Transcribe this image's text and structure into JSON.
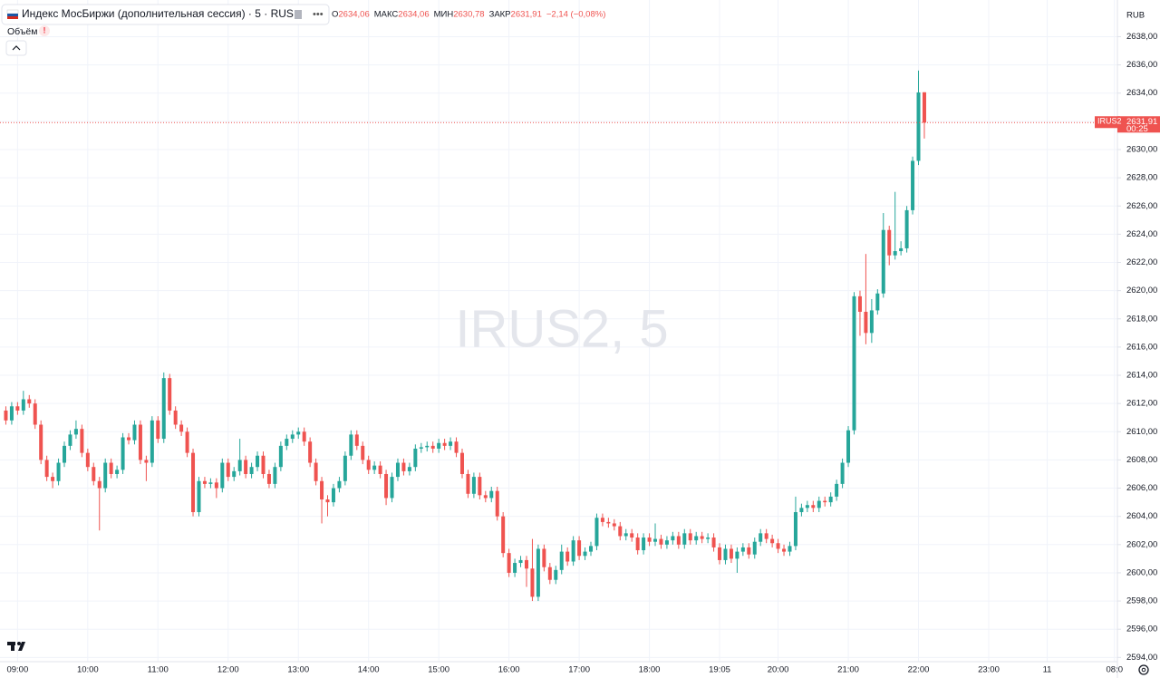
{
  "chart_data": {
    "type": "candlestick",
    "title": "Индекс МосБиржи (дополнительная сессия) · 5 · RUS",
    "legend_values": [
      {
        "label": "О",
        "value": "2634,06"
      },
      {
        "label": "МАКС",
        "value": "2634,06"
      },
      {
        "label": "МИН",
        "value": "2630,78"
      },
      {
        "label": "ЗАКР",
        "value": "2631,91"
      }
    ],
    "change": "−2,14 (−0,08%)",
    "indicator": "Объём",
    "currency": "RUB",
    "watermark": "IRUS2, 5",
    "up_color": "#26a69a",
    "down_color": "#ef5350",
    "grid": true,
    "last_price": {
      "value": 2631.91,
      "label": "2631,91",
      "symbol": "IRUS2",
      "countdown": "00:25"
    },
    "xlim": [
      -1,
      190
    ],
    "xticks": [
      {
        "value": 2,
        "label": "09:00"
      },
      {
        "value": 14,
        "label": "10:00"
      },
      {
        "value": 26,
        "label": "11:00"
      },
      {
        "value": 38,
        "label": "12:00"
      },
      {
        "value": 50,
        "label": "13:00"
      },
      {
        "value": 62,
        "label": "14:00"
      },
      {
        "value": 74,
        "label": "15:00"
      },
      {
        "value": 86,
        "label": "16:00"
      },
      {
        "value": 98,
        "label": "17:00"
      },
      {
        "value": 110,
        "label": "18:00"
      },
      {
        "value": 122,
        "label": "19:05"
      },
      {
        "value": 132,
        "label": "20:00"
      },
      {
        "value": 144,
        "label": "21:00"
      },
      {
        "value": 156,
        "label": "22:00"
      },
      {
        "value": 168,
        "label": "23:00"
      },
      {
        "value": 178,
        "label": "11"
      },
      {
        "value": 189.5,
        "label": "08:0"
      }
    ],
    "ylim": [
      2593.7,
      2640.6
    ],
    "yticks": [
      {
        "value": 2594,
        "label": "2594,00"
      },
      {
        "value": 2596,
        "label": "2596,00"
      },
      {
        "value": 2598,
        "label": "2598,00"
      },
      {
        "value": 2600,
        "label": "2600,00"
      },
      {
        "value": 2602,
        "label": "2602,00"
      },
      {
        "value": 2604,
        "label": "2604,00"
      },
      {
        "value": 2606,
        "label": "2606,00"
      },
      {
        "value": 2608,
        "label": "2608,00"
      },
      {
        "value": 2610,
        "label": "2610,00"
      },
      {
        "value": 2612,
        "label": "2612,00"
      },
      {
        "value": 2614,
        "label": "2614,00"
      },
      {
        "value": 2616,
        "label": "2616,00"
      },
      {
        "value": 2618,
        "label": "2618,00"
      },
      {
        "value": 2620,
        "label": "2620,00"
      },
      {
        "value": 2622,
        "label": "2622,00"
      },
      {
        "value": 2624,
        "label": "2624,00"
      },
      {
        "value": 2626,
        "label": "2626,00"
      },
      {
        "value": 2628,
        "label": "2628,00"
      },
      {
        "value": 2630,
        "label": "2630,00"
      },
      {
        "value": 2632,
        "label": "2632,00"
      },
      {
        "value": 2634,
        "label": "2634,00"
      },
      {
        "value": 2636,
        "label": "2636,00"
      },
      {
        "value": 2638,
        "label": "2638,00"
      }
    ],
    "open": [
      2611.5,
      2610.8,
      2611.8,
      2611.5,
      2612.3,
      2612.0,
      2610.5,
      2608.0,
      2606.8,
      2606.5,
      2607.8,
      2609.0,
      2609.8,
      2610.2,
      2608.5,
      2607.5,
      2606.5,
      2606.0,
      2607.8,
      2607.0,
      2607.3,
      2609.6,
      2609.4,
      2610.5,
      2608.0,
      2607.8,
      2610.8,
      2609.5,
      2613.8,
      2611.5,
      2610.5,
      2610.0,
      2608.5,
      2604.3,
      2606.5,
      2606.3,
      2606.4,
      2606.0,
      2607.8,
      2606.8,
      2607.2,
      2608.0,
      2607.0,
      2607.5,
      2608.3,
      2607.0,
      2606.3,
      2607.5,
      2609.0,
      2609.5,
      2609.8,
      2610.0,
      2609.3,
      2607.8,
      2606.5,
      2605.2,
      2605.0,
      2606.0,
      2606.5,
      2608.3,
      2609.8,
      2609.0,
      2608.0,
      2607.3,
      2607.6,
      2607.0,
      2605.3,
      2606.8,
      2607.8,
      2607.2,
      2607.5,
      2608.8,
      2608.9,
      2609.0,
      2608.8,
      2609.2,
      2609.0,
      2609.3,
      2608.5,
      2607.0,
      2605.6,
      2606.8,
      2605.5,
      2605.3,
      2605.8,
      2604.0,
      2601.4,
      2600.0,
      2600.7,
      2600.9,
      2600.3,
      2598.3,
      2601.7,
      2600.4,
      2599.5,
      2600.2,
      2601.5,
      2600.8,
      2602.3,
      2601.2,
      2601.5,
      2601.9,
      2603.9,
      2603.6,
      2603.5,
      2603.3,
      2602.6,
      2602.8,
      2602.5,
      2601.6,
      2602.5,
      2602.2,
      2602.4,
      2602.0,
      2602.3,
      2602.6,
      2602.0,
      2602.8,
      2602.3,
      2602.6,
      2602.4,
      2602.5,
      2601.8,
      2600.9,
      2601.7,
      2601.0,
      2601.5,
      2601.8,
      2601.3,
      2602.2,
      2602.8,
      2602.4,
      2602.1,
      2601.7,
      2601.5,
      2601.9,
      2604.3,
      2604.6,
      2604.8,
      2604.6,
      2605.1,
      2605.0,
      2605.4,
      2606.3,
      2607.8,
      2610.1,
      2619.6,
      2618.5,
      2617.0,
      2618.6,
      2619.8,
      2624.3,
      2622.5,
      2622.8,
      2623.0,
      2625.7,
      2629.2,
      2634.06
    ],
    "high": [
      2611.8,
      2612.1,
      2612.1,
      2612.9,
      2612.6,
      2612.3,
      2610.8,
      2608.3,
      2607.1,
      2608.1,
      2609.3,
      2610.1,
      2610.8,
      2610.5,
      2608.8,
      2607.8,
      2606.8,
      2608.1,
      2608.1,
      2607.6,
      2609.9,
      2609.9,
      2610.8,
      2610.8,
      2608.3,
      2611.1,
      2611.1,
      2614.2,
      2614.1,
      2611.8,
      2610.8,
      2610.3,
      2608.8,
      2606.8,
      2606.8,
      2606.7,
      2606.7,
      2608.1,
      2608.1,
      2607.5,
      2609.5,
      2608.3,
      2607.8,
      2608.6,
      2608.6,
      2607.3,
      2607.8,
      2609.3,
      2609.8,
      2610.1,
      2610.3,
      2610.3,
      2609.6,
      2608.1,
      2606.8,
      2605.5,
      2606.3,
      2606.8,
      2608.6,
      2610.1,
      2610.1,
      2609.3,
      2608.3,
      2607.9,
      2607.9,
      2607.3,
      2607.1,
      2608.1,
      2608.1,
      2607.8,
      2609.1,
      2609.2,
      2609.3,
      2609.3,
      2609.5,
      2609.5,
      2609.6,
      2609.6,
      2608.8,
      2607.3,
      2607.1,
      2607.1,
      2605.8,
      2606.1,
      2606.1,
      2604.3,
      2601.7,
      2601.0,
      2601.2,
      2601.2,
      2602.4,
      2602.0,
      2602.0,
      2600.7,
      2600.5,
      2602.0,
      2601.8,
      2602.6,
      2602.6,
      2601.8,
      2602.2,
      2604.2,
      2604.2,
      2603.9,
      2603.8,
      2603.6,
      2603.1,
      2603.1,
      2602.8,
      2602.8,
      2602.8,
      2603.5,
      2602.7,
      2602.6,
      2602.9,
      2602.9,
      2603.1,
      2603.1,
      2602.9,
      2602.9,
      2602.8,
      2602.8,
      2602.1,
      2602.0,
      2602.0,
      2601.8,
      2602.1,
      2602.1,
      2602.5,
      2603.1,
      2603.1,
      2602.7,
      2602.4,
      2602.0,
      2602.2,
      2605.4,
      2604.9,
      2605.1,
      2605.1,
      2605.4,
      2605.4,
      2605.7,
      2606.6,
      2608.1,
      2610.4,
      2619.9,
      2620.0,
      2622.6,
      2619.4,
      2620.1,
      2625.5,
      2624.6,
      2627.0,
      2623.5,
      2626.0,
      2629.5,
      2635.6,
      2634.06
    ],
    "low": [
      2610.5,
      2610.5,
      2611.2,
      2611.2,
      2611.7,
      2610.2,
      2607.7,
      2606.5,
      2606.0,
      2606.2,
      2607.5,
      2608.7,
      2609.5,
      2608.2,
      2607.2,
      2606.2,
      2603.0,
      2605.7,
      2606.7,
      2606.7,
      2607.0,
      2609.1,
      2609.1,
      2607.7,
      2606.5,
      2607.5,
      2609.2,
      2609.2,
      2611.2,
      2610.2,
      2609.7,
      2608.2,
      2604.0,
      2604.0,
      2606.0,
      2606.0,
      2605.3,
      2605.7,
      2606.5,
      2606.5,
      2606.9,
      2606.7,
      2606.7,
      2607.2,
      2606.7,
      2606.0,
      2606.0,
      2607.2,
      2608.7,
      2609.2,
      2609.5,
      2609.0,
      2607.5,
      2606.2,
      2603.5,
      2604.0,
      2604.7,
      2605.7,
      2606.2,
      2608.0,
      2608.7,
      2607.7,
      2607.0,
      2607.0,
      2606.7,
      2604.8,
      2605.0,
      2606.5,
      2606.9,
      2606.9,
      2607.2,
      2608.5,
      2608.6,
      2608.5,
      2608.5,
      2608.7,
      2608.7,
      2608.2,
      2606.7,
      2605.3,
      2605.3,
      2605.2,
      2605.0,
      2605.0,
      2603.7,
      2601.1,
      2599.7,
      2599.7,
      2600.4,
      2599.0,
      2598.0,
      2598.0,
      2600.1,
      2599.2,
      2599.2,
      2599.9,
      2600.5,
      2600.5,
      2600.9,
      2600.9,
      2601.2,
      2601.6,
      2603.3,
      2603.2,
      2603.0,
      2602.3,
      2602.3,
      2602.2,
      2601.3,
      2601.3,
      2601.9,
      2601.9,
      2601.7,
      2601.7,
      2602.0,
      2601.7,
      2601.7,
      2602.0,
      2602.0,
      2602.1,
      2602.1,
      2601.5,
      2600.6,
      2600.6,
      2600.7,
      2600.0,
      2601.2,
      2601.0,
      2601.0,
      2601.9,
      2602.1,
      2601.8,
      2601.4,
      2601.2,
      2601.2,
      2601.6,
      2604.0,
      2604.3,
      2604.3,
      2604.3,
      2604.7,
      2604.7,
      2605.1,
      2606.0,
      2607.5,
      2609.8,
      2616.8,
      2616.2,
      2616.3,
      2618.3,
      2619.5,
      2621.8,
      2622.2,
      2622.5,
      2622.7,
      2625.4,
      2628.9,
      2630.78
    ],
    "close": [
      2610.8,
      2611.8,
      2611.5,
      2612.3,
      2612.0,
      2610.5,
      2608.0,
      2606.8,
      2606.5,
      2607.8,
      2609.0,
      2609.8,
      2610.2,
      2608.5,
      2607.5,
      2606.5,
      2606.0,
      2607.8,
      2607.0,
      2607.3,
      2609.6,
      2609.4,
      2610.5,
      2608.0,
      2607.8,
      2610.8,
      2609.5,
      2613.8,
      2611.5,
      2610.5,
      2610.0,
      2608.5,
      2604.3,
      2606.5,
      2606.3,
      2606.4,
      2606.0,
      2607.8,
      2606.8,
      2607.2,
      2608.0,
      2607.0,
      2607.5,
      2608.3,
      2607.0,
      2606.3,
      2607.5,
      2609.0,
      2609.5,
      2609.8,
      2610.0,
      2609.3,
      2607.8,
      2606.5,
      2605.2,
      2605.0,
      2606.0,
      2606.5,
      2608.3,
      2609.8,
      2609.0,
      2608.0,
      2607.3,
      2607.6,
      2607.0,
      2605.3,
      2606.8,
      2607.8,
      2607.2,
      2607.5,
      2608.8,
      2608.9,
      2609.0,
      2608.8,
      2609.2,
      2609.0,
      2609.3,
      2608.5,
      2607.0,
      2605.6,
      2606.8,
      2605.5,
      2605.3,
      2605.8,
      2604.0,
      2601.4,
      2600.0,
      2600.7,
      2600.9,
      2600.3,
      2598.3,
      2601.7,
      2600.4,
      2599.5,
      2600.2,
      2601.5,
      2600.8,
      2602.3,
      2601.2,
      2601.5,
      2601.9,
      2603.9,
      2603.6,
      2603.5,
      2603.3,
      2602.6,
      2602.8,
      2602.5,
      2601.6,
      2602.5,
      2602.2,
      2602.4,
      2602.0,
      2602.3,
      2602.6,
      2602.0,
      2602.8,
      2602.3,
      2602.6,
      2602.4,
      2602.5,
      2601.8,
      2600.9,
      2601.7,
      2601.0,
      2601.5,
      2601.8,
      2601.3,
      2602.2,
      2602.8,
      2602.4,
      2602.1,
      2601.7,
      2601.5,
      2601.9,
      2604.3,
      2604.6,
      2604.8,
      2604.6,
      2605.1,
      2605.0,
      2605.4,
      2606.3,
      2607.8,
      2610.1,
      2619.6,
      2618.5,
      2617.0,
      2618.6,
      2619.8,
      2624.3,
      2622.5,
      2622.8,
      2623.0,
      2625.7,
      2629.2,
      2634.05,
      2631.91
    ]
  }
}
